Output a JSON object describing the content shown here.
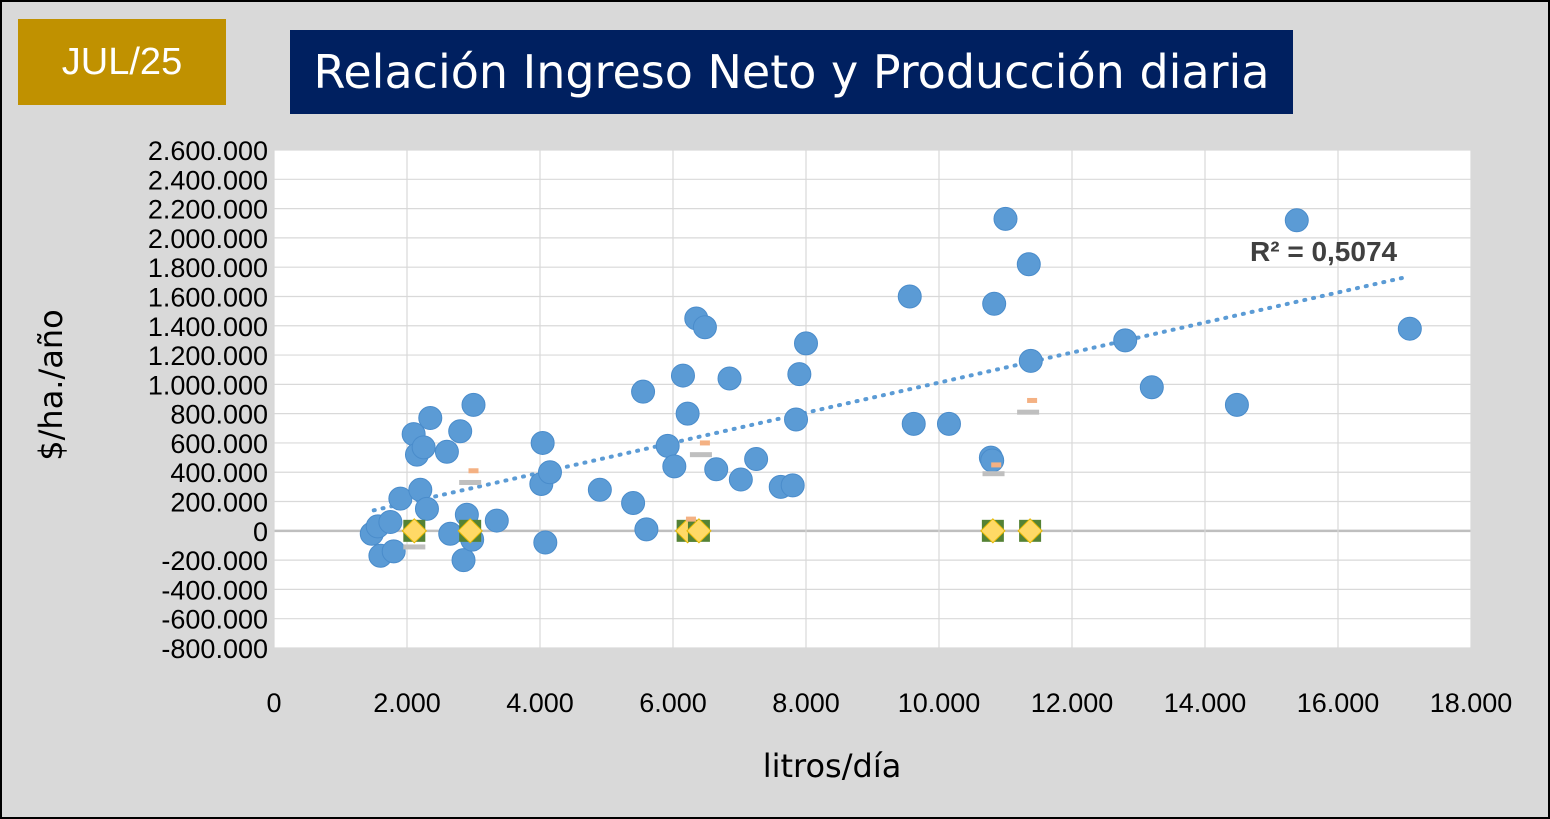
{
  "badge": {
    "label": "JUL/25"
  },
  "chart_data": {
    "type": "scatter",
    "title": "Relación Ingreso Neto y Producción diaria",
    "xlabel": "litros/día",
    "ylabel": "$/ha./año",
    "xlim": [
      0,
      18000
    ],
    "ylim": [
      -800000,
      2600000
    ],
    "x_ticks": [
      "0",
      "2.000",
      "4.000",
      "6.000",
      "8.000",
      "10.000",
      "12.000",
      "14.000",
      "16.000",
      "18.000"
    ],
    "y_ticks": [
      "2.600.000",
      "2.400.000",
      "2.200.000",
      "2.000.000",
      "1.800.000",
      "1.600.000",
      "1.400.000",
      "1.200.000",
      "1.000.000",
      "800.000",
      "600.000",
      "400.000",
      "200.000",
      "0",
      "-200.000",
      "-400.000",
      "-600.000",
      "-800.000"
    ],
    "grid": true,
    "colors": {
      "points": "#5b9bd5",
      "trend": "#5b9bd5",
      "diamond_fill": "#ffd966",
      "diamond_edge": "#548235",
      "dash_orange": "#f4b183",
      "dash_gray": "#bfbfbf"
    },
    "series": [
      {
        "marker": "circle",
        "x": [
          1470,
          1560,
          1600,
          1750,
          1800,
          1900,
          2100,
          2150,
          2200,
          2250,
          2300,
          2350,
          2600,
          2650,
          2800,
          2850,
          2900,
          2980,
          3000,
          3350,
          4020,
          4040,
          4080,
          4150,
          4900,
          5400,
          5550,
          5600,
          5920,
          6020,
          6150,
          6220,
          6350,
          6480,
          6650,
          6850,
          7020,
          7250,
          7620,
          7800,
          7850,
          7900,
          8000,
          9560,
          9620,
          10150,
          10780,
          10800,
          10830,
          11000,
          11350,
          11380,
          12800,
          13200,
          14480,
          15380,
          17080
        ],
        "y": [
          -20000,
          30000,
          -170000,
          60000,
          -140000,
          220000,
          660000,
          520000,
          280000,
          570000,
          150000,
          770000,
          540000,
          -20000,
          680000,
          -200000,
          110000,
          -60000,
          860000,
          70000,
          320000,
          600000,
          -80000,
          400000,
          280000,
          190000,
          950000,
          10000,
          580000,
          440000,
          1060000,
          800000,
          1450000,
          1390000,
          420000,
          1040000,
          350000,
          490000,
          300000,
          310000,
          760000,
          1070000,
          1280000,
          1600000,
          730000,
          730000,
          500000,
          480000,
          1550000,
          2130000,
          1820000,
          1160000,
          1300000,
          980000,
          860000,
          2120000,
          1380000
        ]
      },
      {
        "marker": "diamond",
        "x": [
          2110,
          2950,
          6220,
          6390,
          10810,
          11370
        ],
        "y": [
          0,
          0,
          0,
          0,
          0,
          0
        ]
      },
      {
        "marker": "dash-orange",
        "x": [
          3000,
          6270,
          6480,
          10860,
          11400
        ],
        "y": [
          410000,
          80000,
          600000,
          450000,
          890000
        ]
      },
      {
        "marker": "dash-gray",
        "x": [
          2110,
          2950,
          6420,
          10820,
          11340
        ],
        "y": [
          -110000,
          330000,
          520000,
          390000,
          810000
        ]
      }
    ],
    "trendline": {
      "type": "linear",
      "x": [
        1500,
        17000
      ],
      "y": [
        140000,
        1730000
      ],
      "label": "R² = 0,5074"
    }
  }
}
